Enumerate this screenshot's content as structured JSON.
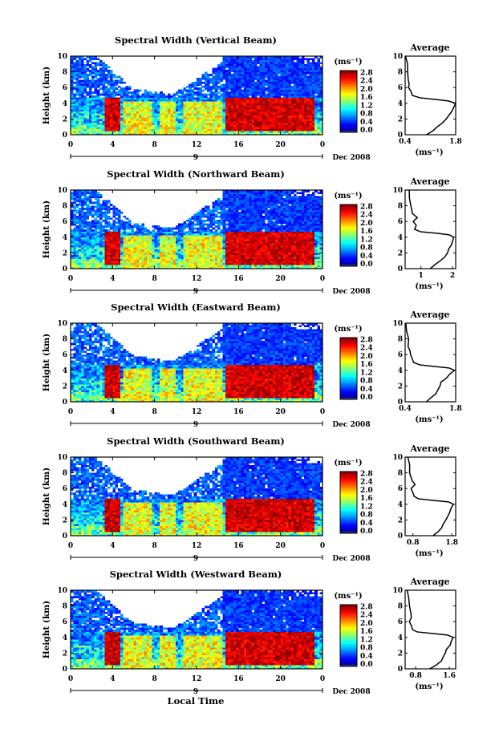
{
  "x_label": "Local Time",
  "date_label": "Dec 2008",
  "day_label": "9",
  "colorbar": {
    "unit": "(ms⁻¹)",
    "ticks": [
      "2.8",
      "2.4",
      "2.0",
      "1.6",
      "1.2",
      "0.8",
      "0.4",
      "0.0"
    ],
    "values": [
      2.8,
      2.4,
      2.0,
      1.6,
      1.2,
      0.8,
      0.4,
      0.0
    ],
    "colormap": "jet"
  },
  "chart_data": [
    {
      "type": "heatmap",
      "title": "Spectral Width (Vertical Beam)",
      "ylabel": "Height (km)",
      "xlabel": "Local Time",
      "x_ticks": [
        "0",
        "4",
        "8",
        "12",
        "16",
        "20",
        "0"
      ],
      "y_ticks": [
        "0",
        "2",
        "4",
        "6",
        "8",
        "10"
      ],
      "xlim": [
        0,
        24
      ],
      "ylim": [
        0,
        10
      ],
      "zlim": [
        0,
        2.8
      ],
      "average": {
        "title": "Average",
        "xlabel": "(ms⁻¹)",
        "x_ticks": [
          "0.4",
          "1.8"
        ],
        "xlim": [
          0.4,
          1.8
        ],
        "ylim": [
          0,
          10
        ],
        "height": [
          0,
          0.5,
          1,
          1.5,
          2,
          2.5,
          3,
          3.5,
          4,
          4.3,
          4.5,
          4.7,
          5,
          5.5,
          6,
          6.5,
          7,
          8,
          9,
          10
        ],
        "width": [
          1.0,
          1.15,
          1.3,
          1.45,
          1.55,
          1.62,
          1.7,
          1.75,
          1.8,
          1.6,
          1.2,
          0.8,
          0.6,
          0.55,
          0.5,
          0.5,
          0.5,
          0.45,
          0.45,
          0.42
        ]
      }
    },
    {
      "type": "heatmap",
      "title": "Spectral Width (Northward Beam)",
      "ylabel": "Height (km)",
      "xlabel": "Local Time",
      "x_ticks": [
        "0",
        "4",
        "8",
        "12",
        "16",
        "20",
        "0"
      ],
      "y_ticks": [
        "0",
        "2",
        "4",
        "6",
        "8",
        "10"
      ],
      "xlim": [
        0,
        24
      ],
      "ylim": [
        0,
        10
      ],
      "zlim": [
        0,
        2.8
      ],
      "average": {
        "title": "Average",
        "xlabel": "(ms⁻¹)",
        "x_ticks": [
          "1",
          "2"
        ],
        "xlim": [
          0.5,
          2.1
        ],
        "ylim": [
          0,
          10
        ],
        "height": [
          0,
          0.5,
          1,
          1.5,
          2,
          2.5,
          3,
          3.5,
          4,
          4.3,
          4.5,
          4.7,
          5,
          5.5,
          6,
          6.5,
          7,
          8,
          9,
          10
        ],
        "width": [
          1.3,
          1.45,
          1.6,
          1.75,
          1.85,
          1.9,
          1.95,
          2.0,
          2.05,
          1.9,
          1.5,
          1.0,
          0.8,
          0.85,
          0.75,
          0.9,
          0.75,
          0.7,
          0.65,
          0.65
        ]
      }
    },
    {
      "type": "heatmap",
      "title": "Spectral Width (Eastward Beam)",
      "ylabel": "Height (km)",
      "xlabel": "Local Time",
      "x_ticks": [
        "0",
        "4",
        "8",
        "12",
        "16",
        "20",
        "0"
      ],
      "y_ticks": [
        "0",
        "2",
        "4",
        "6",
        "8",
        "10"
      ],
      "xlim": [
        0,
        24
      ],
      "ylim": [
        0,
        10
      ],
      "zlim": [
        0,
        2.8
      ],
      "average": {
        "title": "Average",
        "xlabel": "(ms⁻¹)",
        "x_ticks": [
          "0.4",
          "1.8"
        ],
        "xlim": [
          0.4,
          1.8
        ],
        "ylim": [
          0,
          10
        ],
        "height": [
          0,
          0.5,
          1,
          1.5,
          2,
          2.5,
          3,
          3.5,
          4,
          4.3,
          4.5,
          4.7,
          5,
          5.5,
          6,
          6.5,
          7,
          8,
          9,
          10
        ],
        "width": [
          1.0,
          1.1,
          1.25,
          1.3,
          1.35,
          1.4,
          1.55,
          1.65,
          1.75,
          1.6,
          1.2,
          0.8,
          0.65,
          0.6,
          0.55,
          0.55,
          0.5,
          0.5,
          0.45,
          0.42
        ]
      }
    },
    {
      "type": "heatmap",
      "title": "Spectral Width (Southward Beam)",
      "ylabel": "Height (km)",
      "xlabel": "Local Time",
      "x_ticks": [
        "0",
        "4",
        "8",
        "12",
        "16",
        "20",
        "0"
      ],
      "y_ticks": [
        "0",
        "2",
        "4",
        "6",
        "8",
        "10"
      ],
      "xlim": [
        0,
        24
      ],
      "ylim": [
        0,
        10
      ],
      "zlim": [
        0,
        2.8
      ],
      "average": {
        "title": "Average",
        "xlabel": "(ms⁻¹)",
        "x_ticks": [
          "0.8",
          "1.8"
        ],
        "xlim": [
          0.6,
          1.9
        ],
        "ylim": [
          0,
          10
        ],
        "height": [
          0,
          0.5,
          1,
          1.5,
          2,
          2.5,
          3,
          3.5,
          4,
          4.3,
          4.5,
          4.7,
          5,
          5.5,
          6,
          6.5,
          7,
          8,
          9,
          10
        ],
        "width": [
          1.3,
          1.45,
          1.55,
          1.6,
          1.65,
          1.7,
          1.75,
          1.8,
          1.85,
          1.7,
          1.3,
          0.95,
          0.85,
          0.8,
          0.75,
          0.85,
          0.78,
          0.72,
          0.7,
          0.68
        ]
      }
    },
    {
      "type": "heatmap",
      "title": "Spectral Width (Westward Beam)",
      "ylabel": "Height (km)",
      "xlabel": "Local Time",
      "x_ticks": [
        "0",
        "4",
        "8",
        "12",
        "16",
        "20",
        "0"
      ],
      "y_ticks": [
        "0",
        "2",
        "4",
        "6",
        "8",
        "10"
      ],
      "xlim": [
        0,
        24
      ],
      "ylim": [
        0,
        10
      ],
      "zlim": [
        0,
        2.8
      ],
      "average": {
        "title": "Average",
        "xlabel": "(ms⁻¹)",
        "x_ticks": [
          "0.8",
          "1.6"
        ],
        "xlim": [
          0.55,
          1.75
        ],
        "ylim": [
          0,
          10
        ],
        "height": [
          0,
          0.5,
          1,
          1.5,
          2,
          2.5,
          3,
          3.5,
          4,
          4.3,
          4.5,
          4.7,
          5,
          5.5,
          6,
          6.5,
          7,
          8,
          9,
          10
        ],
        "width": [
          1.15,
          1.3,
          1.4,
          1.45,
          1.5,
          1.55,
          1.6,
          1.65,
          1.7,
          1.55,
          1.2,
          0.85,
          0.72,
          0.7,
          0.65,
          0.7,
          0.68,
          0.65,
          0.62,
          0.6
        ]
      }
    }
  ]
}
